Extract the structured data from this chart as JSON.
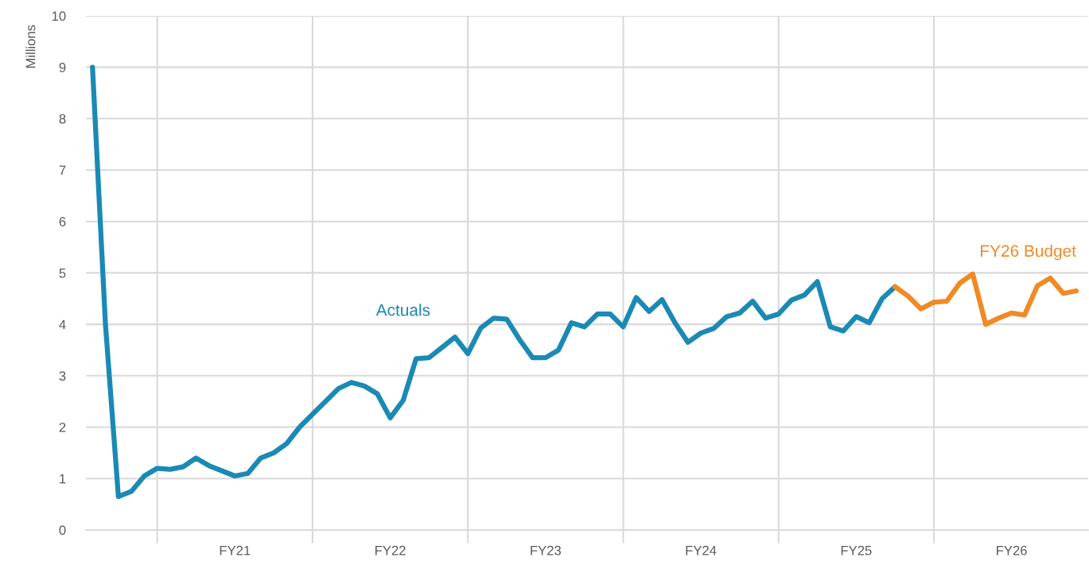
{
  "chart_data": {
    "type": "line",
    "ylabel": "Millions",
    "ylim": [
      0,
      10
    ],
    "yticks": [
      0,
      1,
      2,
      3,
      4,
      5,
      6,
      7,
      8,
      9,
      10
    ],
    "categories": [
      null,
      null,
      null,
      null,
      null,
      null,
      null,
      null,
      null,
      null,
      null,
      "FY21",
      null,
      null,
      null,
      null,
      null,
      null,
      null,
      null,
      null,
      null,
      null,
      "FY22",
      null,
      null,
      null,
      null,
      null,
      null,
      null,
      null,
      null,
      null,
      null,
      "FY23",
      null,
      null,
      null,
      null,
      null,
      null,
      null,
      null,
      null,
      null,
      null,
      "FY24",
      null,
      null,
      null,
      null,
      null,
      null,
      null,
      null,
      null,
      null,
      null,
      "FY25",
      null,
      null,
      null,
      null,
      null,
      null,
      null,
      null,
      null,
      null,
      null,
      "FY26",
      null,
      null,
      null,
      null,
      null
    ],
    "grid": true,
    "line_style": "solid",
    "marker": "none",
    "series": [
      {
        "name": "Actuals",
        "color": "#1a8ab5",
        "values": [
          9.0,
          4.0,
          0.65,
          0.75,
          1.05,
          1.2,
          1.18,
          1.23,
          1.4,
          1.25,
          1.15,
          1.05,
          1.1,
          1.4,
          1.5,
          1.68,
          2.0,
          2.25,
          2.5,
          2.75,
          2.87,
          2.8,
          2.65,
          2.18,
          2.52,
          3.33,
          3.35,
          3.55,
          3.75,
          3.43,
          3.93,
          4.12,
          4.1,
          3.7,
          3.35,
          3.35,
          3.5,
          4.03,
          3.95,
          4.2,
          4.2,
          3.95,
          4.52,
          4.25,
          4.48,
          4.03,
          3.65,
          3.83,
          3.92,
          4.15,
          4.22,
          4.45,
          4.12,
          4.2,
          4.47,
          4.57,
          4.83,
          3.95,
          3.87,
          4.15,
          4.03,
          4.5,
          4.73,
          null,
          null,
          null,
          null,
          null,
          null,
          null,
          null,
          null,
          null,
          null,
          null,
          null,
          null
        ]
      },
      {
        "name": "FY26 Budget",
        "color": "#f08a24",
        "values": [
          null,
          null,
          null,
          null,
          null,
          null,
          null,
          null,
          null,
          null,
          null,
          null,
          null,
          null,
          null,
          null,
          null,
          null,
          null,
          null,
          null,
          null,
          null,
          null,
          null,
          null,
          null,
          null,
          null,
          null,
          null,
          null,
          null,
          null,
          null,
          null,
          null,
          null,
          null,
          null,
          null,
          null,
          null,
          null,
          null,
          null,
          null,
          null,
          null,
          null,
          null,
          null,
          null,
          null,
          null,
          null,
          null,
          null,
          null,
          null,
          null,
          null,
          4.73,
          4.55,
          4.3,
          4.43,
          4.45,
          4.8,
          4.98,
          4.0,
          4.12,
          4.22,
          4.18,
          4.75,
          4.9,
          4.6,
          4.65
        ]
      }
    ]
  }
}
